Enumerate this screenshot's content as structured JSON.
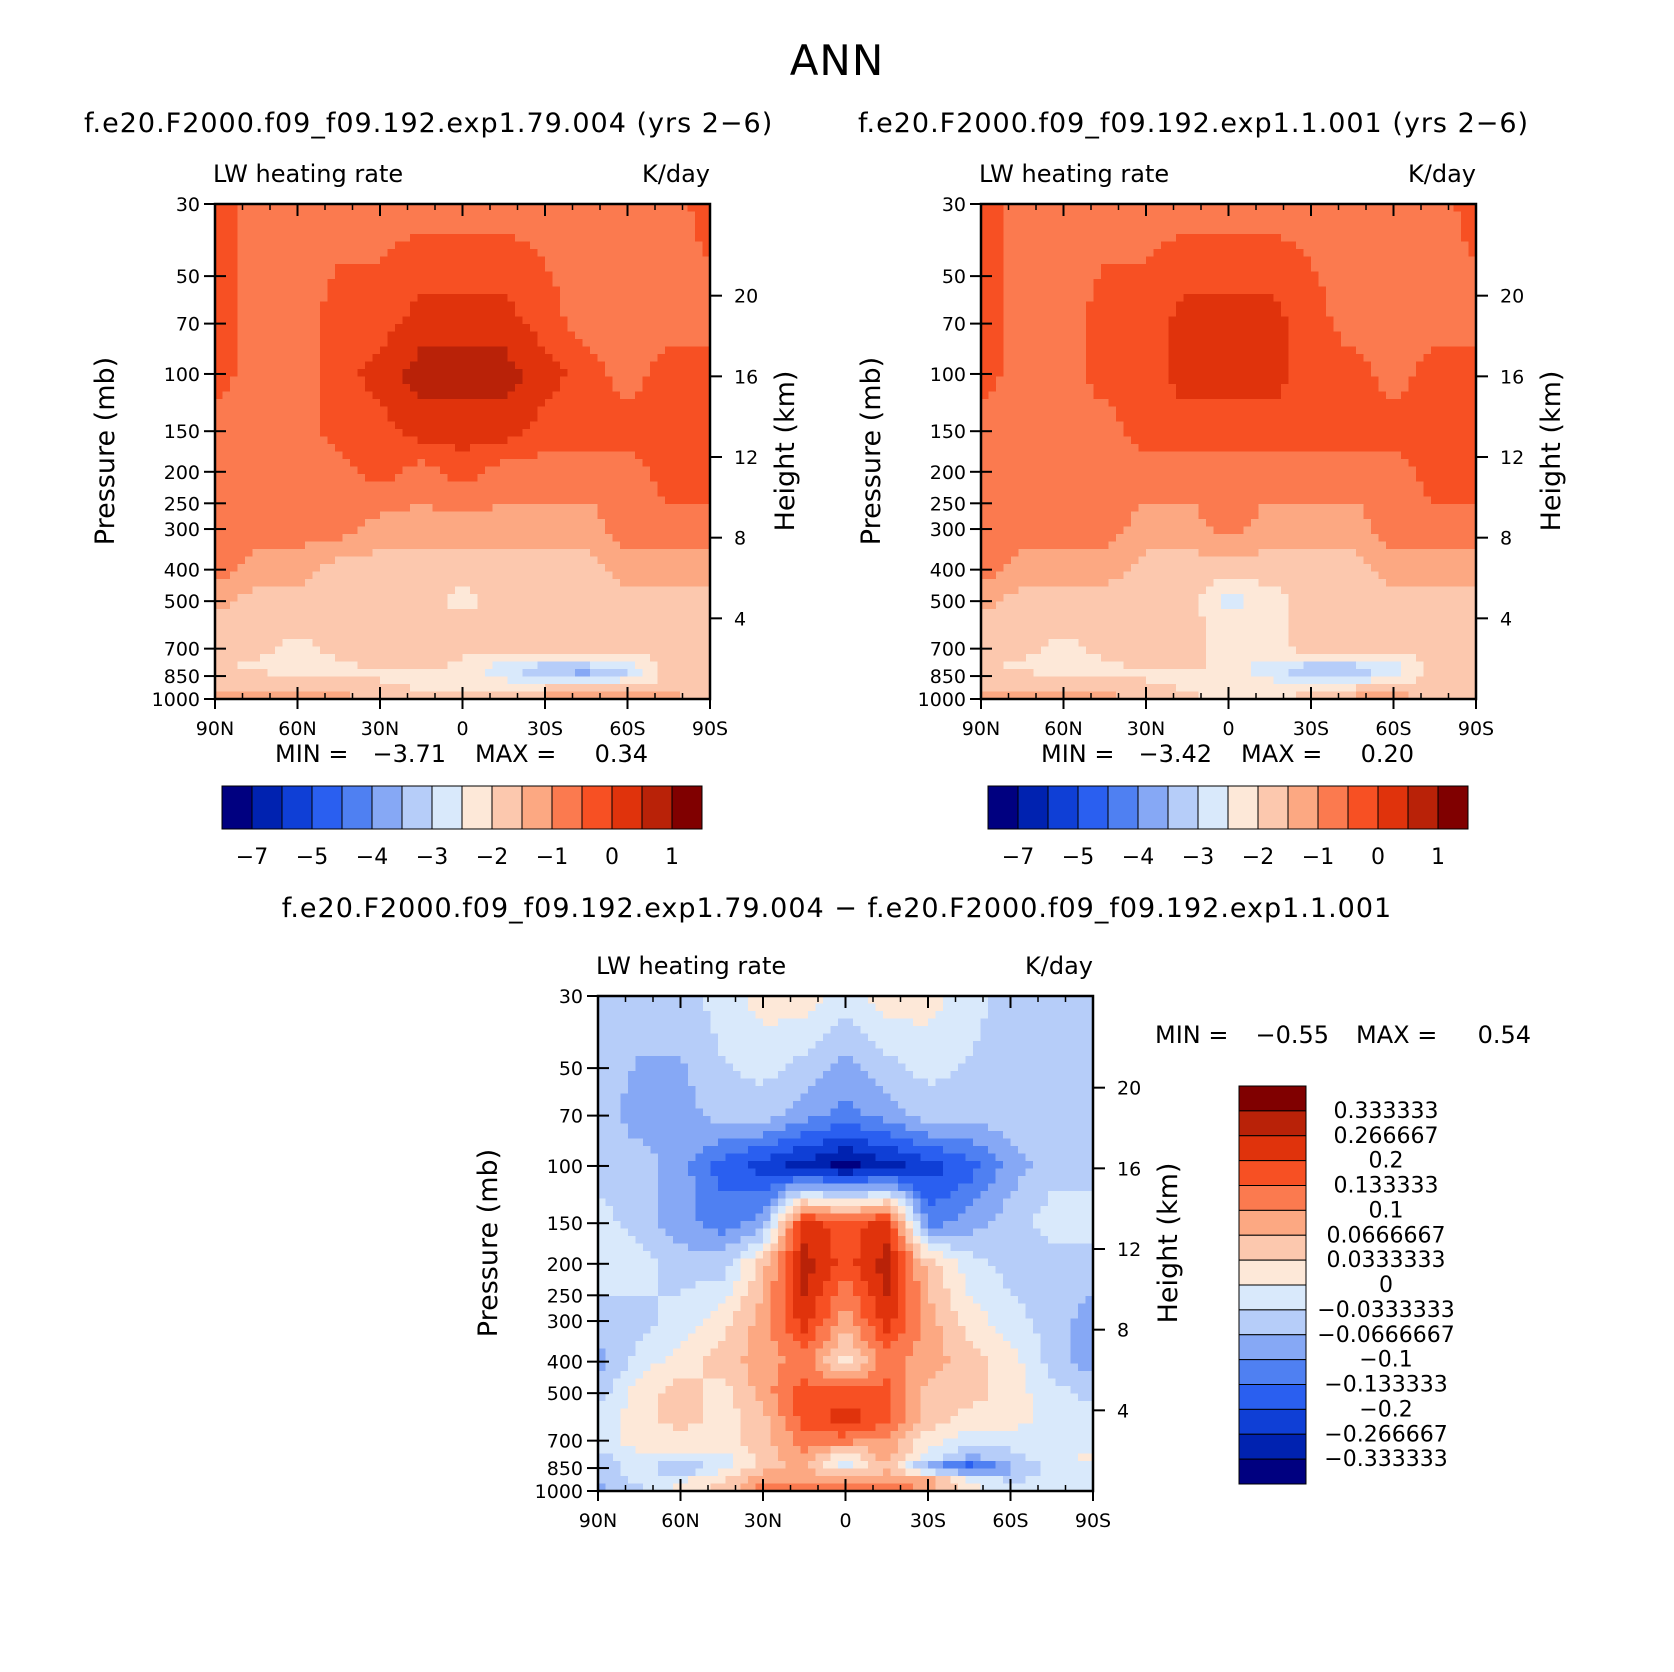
{
  "page_title": "ANN",
  "colors": {
    "blues": [
      "#000080",
      "#0022b0",
      "#0f3fd6",
      "#2a5ff0",
      "#4f80f2",
      "#86a8f5",
      "#b6cdf9",
      "#d9e9fb"
    ],
    "reds": [
      "#fde8d8",
      "#fcc8ae",
      "#fca882",
      "#fb7a4f",
      "#f75023",
      "#e0330c",
      "#b92208",
      "#800000"
    ],
    "neutral": "#fde8d8"
  },
  "chart_data": [
    {
      "type": "heatmap",
      "id": "run1",
      "title": "f.e20.F2000.f09_f09.192.exp1.79.004 (yrs 2−6)",
      "left_label": "LW heating rate",
      "right_label": "K/day",
      "ylabel": "Pressure (mb)",
      "y2label": "Height (km)",
      "xlim": [
        90,
        -90
      ],
      "ylim": [
        1000,
        30
      ],
      "x_ticks": [
        {
          "v": 90,
          "l": "90N"
        },
        {
          "v": 60,
          "l": "60N"
        },
        {
          "v": 30,
          "l": "30N"
        },
        {
          "v": 0,
          "l": "0"
        },
        {
          "v": -30,
          "l": "30S"
        },
        {
          "v": -60,
          "l": "60S"
        },
        {
          "v": -90,
          "l": "90S"
        }
      ],
      "y_ticks": [
        "30",
        "50",
        "70",
        "100",
        "150",
        "200",
        "250",
        "300",
        "400",
        "500",
        "700",
        "850",
        "1000"
      ],
      "y2_ticks": [
        {
          "km": 20,
          "l": "20"
        },
        {
          "km": 16,
          "l": "16"
        },
        {
          "km": 12,
          "l": "12"
        },
        {
          "km": 8,
          "l": "8"
        },
        {
          "km": 4,
          "l": "4"
        }
      ],
      "min_label": "MIN =",
      "min_value": "−3.71",
      "max_label": "MAX =",
      "max_value": "0.34",
      "colorbar": {
        "orientation": "horizontal",
        "tick_labels": [
          "−7",
          "−5",
          "−4",
          "−3",
          "−2",
          "−1",
          "0",
          "1"
        ]
      },
      "field": {
        "grid_lat": [
          90,
          75,
          60,
          45,
          30,
          15,
          0,
          -15,
          -30,
          -45,
          -60,
          -75,
          -90
        ],
        "grid_p": [
          30,
          70,
          100,
          150,
          200,
          300,
          400,
          500,
          600,
          700,
          800,
          850,
          900,
          1000
        ],
        "class_by_level": [
          [
            12,
            11,
            11,
            11,
            11,
            11,
            11,
            11,
            11,
            11,
            11,
            11,
            12
          ],
          [
            12,
            11,
            11,
            12,
            12,
            13,
            13,
            13,
            12,
            11,
            11,
            11,
            11
          ],
          [
            12,
            11,
            11,
            12,
            13,
            14,
            14,
            14,
            13,
            12,
            11,
            12,
            12
          ],
          [
            11,
            11,
            11,
            12,
            12,
            13,
            13,
            13,
            12,
            12,
            12,
            12,
            12
          ],
          [
            11,
            11,
            11,
            11,
            12,
            11,
            12,
            11,
            11,
            11,
            11,
            12,
            12
          ],
          [
            11,
            11,
            11,
            11,
            10,
            10,
            10,
            10,
            10,
            10,
            11,
            11,
            11
          ],
          [
            11,
            10,
            10,
            9,
            9,
            9,
            9,
            9,
            9,
            9,
            10,
            10,
            10
          ],
          [
            10,
            9,
            9,
            9,
            9,
            9,
            8,
            9,
            9,
            9,
            9,
            9,
            9
          ],
          [
            9,
            9,
            9,
            9,
            9,
            9,
            9,
            9,
            9,
            9,
            9,
            9,
            9
          ],
          [
            9,
            9,
            8,
            9,
            9,
            9,
            9,
            9,
            9,
            9,
            9,
            9,
            9
          ],
          [
            9,
            8,
            8,
            8,
            9,
            9,
            8,
            7,
            6,
            6,
            7,
            9,
            9
          ],
          [
            9,
            9,
            8,
            8,
            8,
            8,
            8,
            7,
            6,
            5,
            6,
            9,
            9
          ],
          [
            9,
            9,
            9,
            9,
            9,
            8,
            8,
            8,
            8,
            9,
            9,
            9,
            9
          ],
          [
            10,
            10,
            10,
            10,
            9,
            9,
            9,
            9,
            10,
            10,
            10,
            10,
            9
          ]
        ]
      }
    },
    {
      "type": "heatmap",
      "id": "run2",
      "title": "f.e20.F2000.f09_f09.192.exp1.1.001 (yrs 2−6)",
      "left_label": "LW heating rate",
      "right_label": "K/day",
      "ylabel": "Pressure (mb)",
      "y2label": "Height (km)",
      "xlim": [
        90,
        -90
      ],
      "ylim": [
        1000,
        30
      ],
      "x_ticks": [
        {
          "v": 90,
          "l": "90N"
        },
        {
          "v": 60,
          "l": "60N"
        },
        {
          "v": 30,
          "l": "30N"
        },
        {
          "v": 0,
          "l": "0"
        },
        {
          "v": -30,
          "l": "30S"
        },
        {
          "v": -60,
          "l": "60S"
        },
        {
          "v": -90,
          "l": "90S"
        }
      ],
      "y_ticks": [
        "30",
        "50",
        "70",
        "100",
        "150",
        "200",
        "250",
        "300",
        "400",
        "500",
        "700",
        "850",
        "1000"
      ],
      "y2_ticks": [
        {
          "km": 20,
          "l": "20"
        },
        {
          "km": 16,
          "l": "16"
        },
        {
          "km": 12,
          "l": "12"
        },
        {
          "km": 8,
          "l": "8"
        },
        {
          "km": 4,
          "l": "4"
        }
      ],
      "min_label": "MIN =",
      "min_value": "−3.42",
      "max_label": "MAX =",
      "max_value": "0.20",
      "colorbar": {
        "orientation": "horizontal",
        "tick_labels": [
          "−7",
          "−5",
          "−4",
          "−3",
          "−2",
          "−1",
          "0",
          "1"
        ]
      },
      "field": {
        "grid_lat": [
          90,
          75,
          60,
          45,
          30,
          15,
          0,
          -15,
          -30,
          -45,
          -60,
          -75,
          -90
        ],
        "grid_p": [
          30,
          70,
          100,
          150,
          200,
          300,
          400,
          500,
          600,
          700,
          800,
          850,
          900,
          1000
        ],
        "class_by_level": [
          [
            12,
            11,
            11,
            11,
            11,
            11,
            11,
            11,
            11,
            11,
            11,
            11,
            12
          ],
          [
            12,
            11,
            11,
            12,
            12,
            13,
            13,
            13,
            12,
            11,
            11,
            11,
            11
          ],
          [
            12,
            11,
            11,
            12,
            12,
            13,
            13,
            13,
            12,
            12,
            11,
            12,
            12
          ],
          [
            11,
            11,
            11,
            11,
            12,
            12,
            12,
            12,
            12,
            12,
            12,
            12,
            12
          ],
          [
            11,
            11,
            11,
            11,
            11,
            11,
            11,
            11,
            11,
            11,
            11,
            12,
            12
          ],
          [
            11,
            11,
            11,
            11,
            10,
            10,
            11,
            10,
            10,
            10,
            11,
            11,
            11
          ],
          [
            11,
            10,
            10,
            10,
            9,
            9,
            9,
            9,
            9,
            9,
            10,
            10,
            10
          ],
          [
            10,
            9,
            9,
            9,
            9,
            9,
            7,
            8,
            9,
            9,
            9,
            9,
            9
          ],
          [
            9,
            9,
            9,
            9,
            9,
            9,
            8,
            8,
            9,
            9,
            9,
            9,
            9
          ],
          [
            9,
            9,
            8,
            9,
            9,
            9,
            8,
            8,
            9,
            9,
            9,
            9,
            9
          ],
          [
            9,
            8,
            8,
            8,
            9,
            9,
            8,
            7,
            6,
            6,
            7,
            9,
            9
          ],
          [
            9,
            9,
            8,
            8,
            8,
            8,
            8,
            7,
            6,
            6,
            7,
            9,
            9
          ],
          [
            9,
            9,
            9,
            9,
            9,
            8,
            8,
            8,
            8,
            8,
            9,
            9,
            9
          ],
          [
            10,
            10,
            10,
            10,
            9,
            9,
            8,
            8,
            9,
            10,
            10,
            9,
            9
          ]
        ]
      }
    },
    {
      "type": "heatmap",
      "id": "diff",
      "title": "f.e20.F2000.f09_f09.192.exp1.79.004 − f.e20.F2000.f09_f09.192.exp1.1.001",
      "left_label": "LW heating rate",
      "right_label": "K/day",
      "ylabel": "Pressure (mb)",
      "y2label": "Height (km)",
      "xlim": [
        90,
        -90
      ],
      "ylim": [
        1000,
        30
      ],
      "x_ticks": [
        {
          "v": 90,
          "l": "90N"
        },
        {
          "v": 60,
          "l": "60N"
        },
        {
          "v": 30,
          "l": "30N"
        },
        {
          "v": 0,
          "l": "0"
        },
        {
          "v": -30,
          "l": "30S"
        },
        {
          "v": -60,
          "l": "60S"
        },
        {
          "v": -90,
          "l": "90S"
        }
      ],
      "y_ticks": [
        "30",
        "50",
        "70",
        "100",
        "150",
        "200",
        "250",
        "300",
        "400",
        "500",
        "700",
        "850",
        "1000"
      ],
      "y2_ticks": [
        {
          "km": 20,
          "l": "20"
        },
        {
          "km": 16,
          "l": "16"
        },
        {
          "km": 12,
          "l": "12"
        },
        {
          "km": 8,
          "l": "8"
        },
        {
          "km": 4,
          "l": "4"
        }
      ],
      "min_label": "MIN =",
      "min_value": "−0.55",
      "max_label": "MAX =",
      "max_value": "0.54",
      "colorbar": {
        "orientation": "vertical",
        "tick_labels": [
          "0.333333",
          "0.266667",
          "0.2",
          "0.133333",
          "0.1",
          "0.0666667",
          "0.0333333",
          "0",
          "−0.0333333",
          "−0.0666667",
          "−0.1",
          "−0.133333",
          "−0.2",
          "−0.266667",
          "−0.333333"
        ]
      },
      "field": {
        "grid_lat": [
          90,
          75,
          60,
          45,
          30,
          15,
          0,
          -15,
          -30,
          -45,
          -60,
          -75,
          -90
        ],
        "grid_p": [
          30,
          70,
          100,
          150,
          200,
          300,
          400,
          500,
          600,
          700,
          800,
          850,
          900,
          1000
        ],
        "class_by_level": [
          [
            6,
            6,
            6,
            7,
            8,
            8,
            7,
            8,
            8,
            7,
            6,
            6,
            6
          ],
          [
            6,
            5,
            5,
            6,
            6,
            5,
            4,
            5,
            6,
            6,
            6,
            6,
            6
          ],
          [
            6,
            6,
            5,
            3,
            2,
            1,
            0,
            1,
            2,
            3,
            5,
            6,
            6
          ],
          [
            7,
            6,
            5,
            4,
            5,
            13,
            12,
            13,
            4,
            5,
            6,
            7,
            7
          ],
          [
            7,
            7,
            6,
            6,
            9,
            14,
            12,
            14,
            9,
            7,
            6,
            6,
            6
          ],
          [
            6,
            6,
            7,
            8,
            10,
            13,
            10,
            13,
            10,
            8,
            7,
            6,
            5
          ],
          [
            5,
            7,
            8,
            9,
            10,
            11,
            8,
            11,
            10,
            9,
            8,
            6,
            5
          ],
          [
            6,
            8,
            9,
            8,
            10,
            12,
            12,
            12,
            9,
            9,
            8,
            7,
            6
          ],
          [
            7,
            8,
            9,
            8,
            9,
            12,
            13,
            12,
            9,
            8,
            8,
            7,
            7
          ],
          [
            7,
            8,
            8,
            8,
            9,
            11,
            11,
            10,
            8,
            7,
            7,
            7,
            7
          ],
          [
            6,
            7,
            7,
            7,
            9,
            10,
            7,
            10,
            7,
            5,
            6,
            7,
            8
          ],
          [
            6,
            7,
            5,
            7,
            9,
            10,
            7,
            9,
            4,
            2,
            5,
            7,
            7
          ],
          [
            6,
            7,
            7,
            8,
            10,
            10,
            10,
            10,
            10,
            7,
            6,
            7,
            7
          ],
          [
            5,
            6,
            8,
            9,
            11,
            12,
            12,
            12,
            10,
            8,
            7,
            7,
            7
          ]
        ]
      }
    }
  ]
}
